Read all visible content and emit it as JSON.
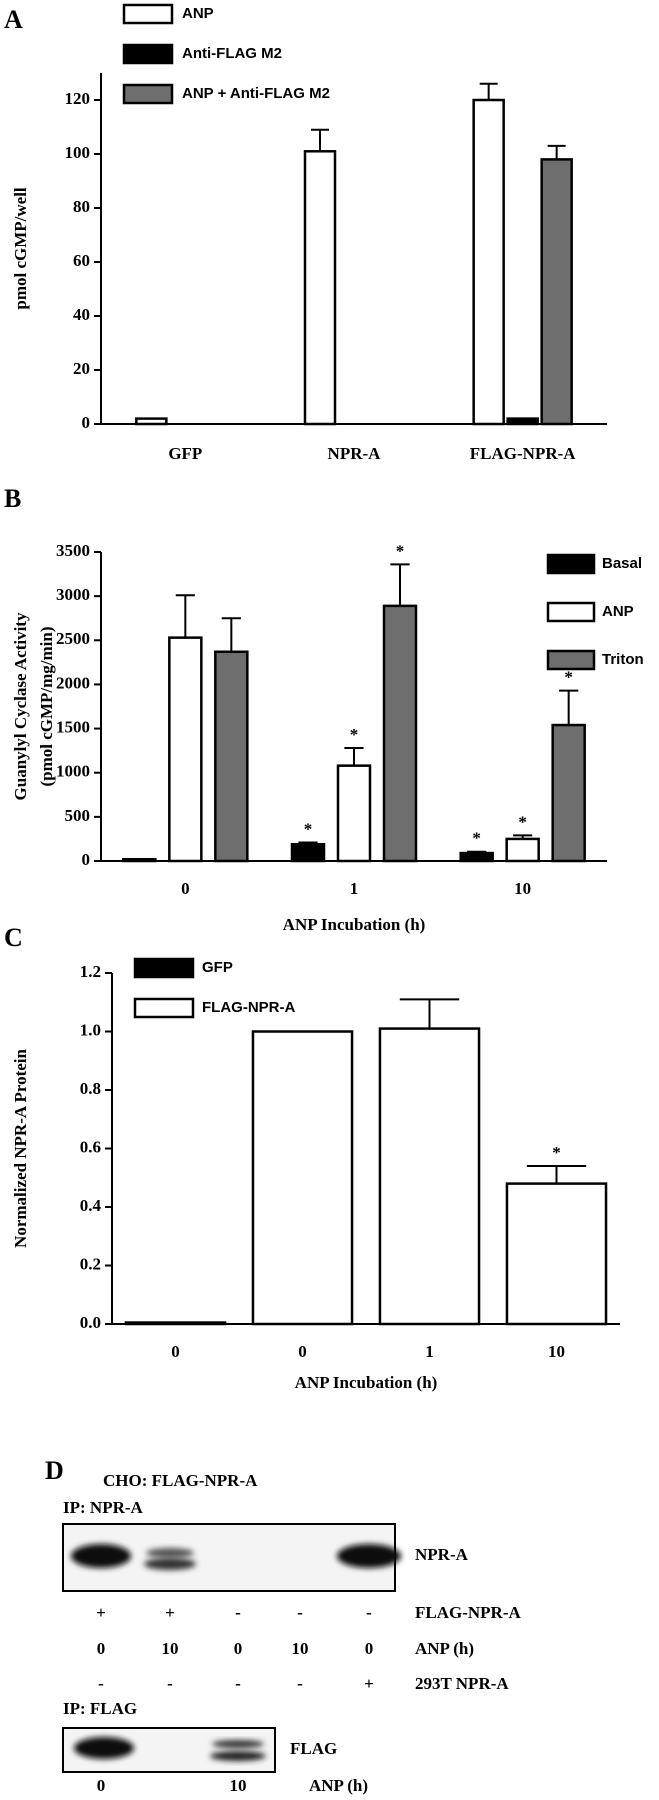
{
  "chart_data": [
    {
      "type": "bar",
      "panel": "A",
      "bar_mode": "grouped",
      "ylabel": "pmol cGMP/well",
      "categories": [
        "GFP",
        "NPR-A",
        "FLAG-NPR-A"
      ],
      "series": [
        {
          "name": "ANP",
          "color": "#ffffff",
          "values": [
            2,
            101,
            120
          ],
          "errors": [
            null,
            8,
            6
          ]
        },
        {
          "name": "Anti-FLAG M2",
          "color": "#000000",
          "values": [
            null,
            null,
            2
          ],
          "errors": [
            null,
            null,
            null
          ]
        },
        {
          "name": "ANP + Anti-FLAG M2",
          "color": "#6e6e6e",
          "values": [
            null,
            null,
            98
          ],
          "errors": [
            null,
            null,
            5
          ]
        }
      ],
      "ylim": [
        0,
        130
      ],
      "yticks": [
        0,
        20,
        40,
        60,
        80,
        100,
        120
      ]
    },
    {
      "type": "bar",
      "panel": "B",
      "bar_mode": "grouped",
      "ylabel": [
        "Guanylyl Cyclase Activity",
        "(pmol cGMP/mg/min)"
      ],
      "xlabel": "ANP Incubation (h)",
      "categories": [
        "0",
        "1",
        "10"
      ],
      "series": [
        {
          "name": "Basal",
          "color": "#000000",
          "values": [
            20,
            190,
            90
          ],
          "errors": [
            null,
            20,
            15
          ],
          "labels": [
            null,
            "*",
            "*"
          ]
        },
        {
          "name": "ANP",
          "color": "#ffffff",
          "values": [
            2530,
            1080,
            250
          ],
          "errors": [
            480,
            200,
            40
          ],
          "labels": [
            null,
            "*",
            "*"
          ]
        },
        {
          "name": "Triton",
          "color": "#6e6e6e",
          "values": [
            2370,
            2890,
            1540
          ],
          "errors": [
            380,
            470,
            390
          ],
          "labels": [
            null,
            "*",
            "*"
          ]
        }
      ],
      "ylim": [
        0,
        3500
      ],
      "yticks": [
        0,
        500,
        1000,
        1500,
        2000,
        2500,
        3000,
        3500
      ]
    },
    {
      "type": "bar",
      "panel": "C",
      "bar_mode": "single",
      "ylabel": "Normalized NPR-A Protein",
      "xlabel": "ANP Incubation (h)",
      "categories": [
        "0",
        "0",
        "1",
        "10"
      ],
      "series": [
        {
          "name": "GFP",
          "color": "#000000",
          "values": [
            0.005,
            null,
            null,
            null
          ],
          "errors": [
            null,
            null,
            null,
            null
          ]
        },
        {
          "name": "FLAG-NPR-A",
          "color": "#ffffff",
          "values": [
            null,
            1.0,
            1.01,
            0.48
          ],
          "errors": [
            null,
            null,
            0.1,
            0.06
          ],
          "labels": [
            null,
            null,
            null,
            "*"
          ]
        }
      ],
      "ylim": [
        0,
        1.2
      ],
      "yticks": [
        {
          "value": 0,
          "label": "0.0"
        },
        0.2,
        0.4,
        0.6,
        0.8,
        {
          "value": 1,
          "label": "1.0"
        },
        1.2
      ]
    }
  ],
  "blot": {
    "panel": "D",
    "title": "CHO: FLAG-NPR-A",
    "ip1": "IP: NPR-A",
    "band1": "NPR-A",
    "rows": [
      {
        "label": "FLAG-NPR-A",
        "cells": [
          "+",
          "+",
          "-",
          "-",
          "-"
        ]
      },
      {
        "label": "ANP (h)",
        "cells": [
          "0",
          "10",
          "0",
          "10",
          "0"
        ]
      },
      {
        "label": "293T NPR-A",
        "cells": [
          "-",
          "-",
          "-",
          "-",
          "+"
        ]
      }
    ],
    "ip2": "IP: FLAG",
    "band2": "FLAG",
    "bottom_row": {
      "label": "ANP (h)",
      "cells": [
        "0",
        "10"
      ]
    }
  }
}
